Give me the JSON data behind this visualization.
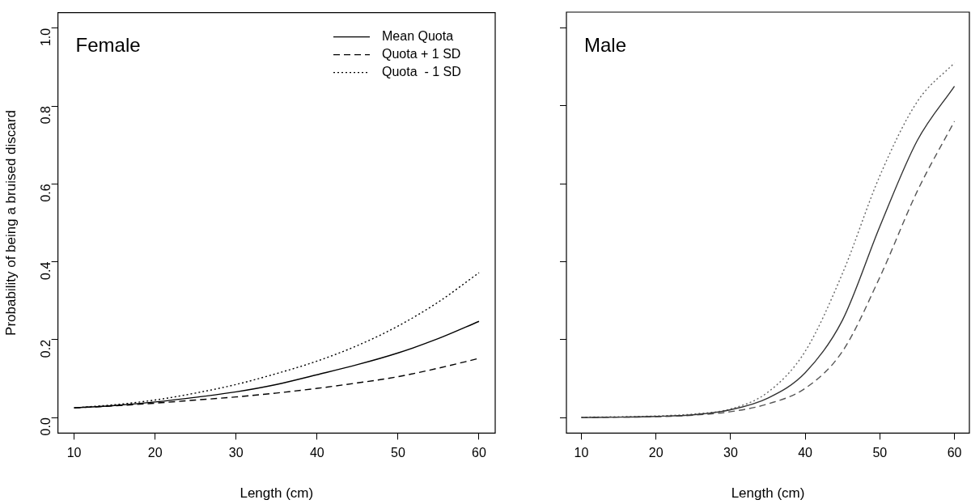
{
  "chart_data": [
    {
      "type": "line",
      "xlabel": "Length (cm)",
      "ylabel": "Probability of being a bruised discard",
      "annotations": [
        "Female"
      ],
      "x": [
        10,
        15,
        20,
        25,
        30,
        35,
        40,
        45,
        50,
        55,
        60
      ],
      "xlim": [
        8,
        62
      ],
      "xticks": [
        10,
        20,
        30,
        40,
        50,
        60
      ],
      "ylim": [
        -0.04,
        1.04
      ],
      "yticks": [
        {
          "value": 0,
          "label": "0.0"
        },
        {
          "value": 0.2,
          "label": "0.2"
        },
        {
          "value": 0.4,
          "label": "0.4"
        },
        {
          "value": 0.6,
          "label": "0.6"
        },
        {
          "value": 0.8,
          "label": "0.8"
        },
        {
          "value": 1,
          "label": "1.0"
        }
      ],
      "grid": false,
      "legend": "top right",
      "marker": "none",
      "series": [
        {
          "name": "Mean Quota",
          "color": "#000000",
          "line_style": "solid",
          "values": [
            0.025,
            0.031,
            0.04,
            0.052,
            0.066,
            0.085,
            0.11,
            0.136,
            0.166,
            0.203,
            0.247
          ]
        },
        {
          "name": "Quota + 1 SD",
          "color": "#000000",
          "line_style": "dashed",
          "values": [
            0.025,
            0.03,
            0.037,
            0.045,
            0.053,
            0.063,
            0.075,
            0.089,
            0.105,
            0.127,
            0.152
          ]
        },
        {
          "name": "Quota  - 1 SD",
          "color": "#000000",
          "line_style": "dotted",
          "values": [
            0.025,
            0.033,
            0.045,
            0.063,
            0.085,
            0.113,
            0.145,
            0.185,
            0.235,
            0.297,
            0.372
          ]
        }
      ]
    },
    {
      "type": "line",
      "xlabel": "Length (cm)",
      "annotations": [
        "Male"
      ],
      "tick_labels": "x",
      "x": [
        10,
        15,
        20,
        25,
        30,
        35,
        40,
        45,
        50,
        55,
        60
      ],
      "xlim": [
        8,
        62
      ],
      "xticks": [
        10,
        20,
        30,
        40,
        50,
        60
      ],
      "ylim": [
        -0.04,
        1.04
      ],
      "yticks": [
        0,
        0.2,
        0.4,
        0.6,
        0.8,
        1
      ],
      "grid": false,
      "marker": "none",
      "series": [
        {
          "color": "#333333",
          "line_style": "solid",
          "values": [
            0,
            0.001,
            0.003,
            0.007,
            0.02,
            0.05,
            0.115,
            0.25,
            0.49,
            0.71,
            0.85
          ]
        },
        {
          "color": "#555555",
          "line_style": "dashed",
          "values": [
            0,
            0.001,
            0.002,
            0.006,
            0.015,
            0.035,
            0.075,
            0.17,
            0.36,
            0.58,
            0.76
          ]
        },
        {
          "color": "#666666",
          "line_style": "dotted",
          "values": [
            0.001,
            0.002,
            0.004,
            0.009,
            0.022,
            0.065,
            0.17,
            0.37,
            0.62,
            0.81,
            0.91
          ]
        }
      ]
    }
  ]
}
